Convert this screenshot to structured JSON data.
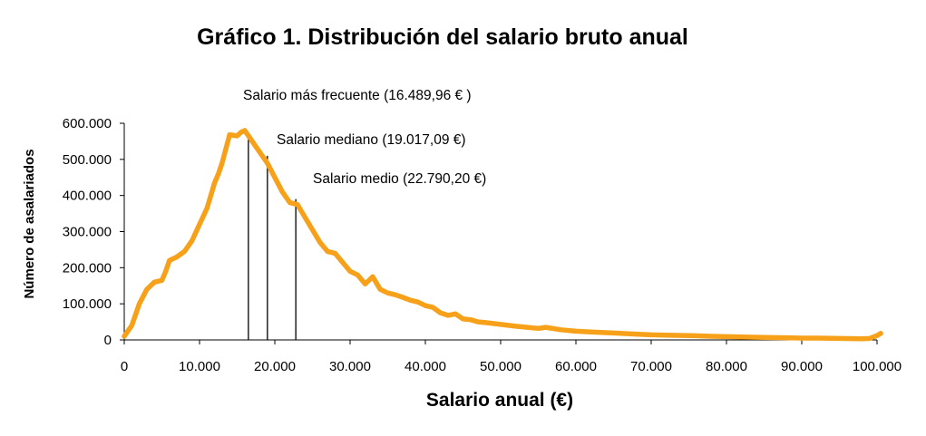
{
  "chart_data": {
    "type": "line",
    "title": "Gráfico 1. Distribución del salario bruto anual",
    "xlabel": "Salario anual (€)",
    "ylabel": "Número de asalariados",
    "xlim": [
      0,
      100000
    ],
    "ylim": [
      0,
      600000
    ],
    "x_ticks": [
      "0",
      "10.000",
      "20.000",
      "30.000",
      "40.000",
      "50.000",
      "60.000",
      "70.000",
      "80.000",
      "90.000",
      "100.000"
    ],
    "y_ticks": [
      "0",
      "100.000",
      "200.000",
      "300.000",
      "400.000",
      "500.000",
      "600.000"
    ],
    "grid": false,
    "line_color": "#F7A11A",
    "series": [
      {
        "x": [
          0,
          1000,
          2000,
          3000,
          4000,
          5000,
          5500,
          6000,
          7000,
          8000,
          9000,
          10000,
          11000,
          12000,
          12500,
          13000,
          13500,
          14000,
          15000,
          15500,
          16000,
          16500,
          17000,
          18000,
          19000,
          20000,
          21000,
          22000,
          23000,
          24000,
          25000,
          26000,
          27000,
          28000,
          29000,
          30000,
          31000,
          32000,
          33000,
          34000,
          35000,
          36000,
          37000,
          38000,
          39000,
          40000,
          41000,
          42000,
          43000,
          44000,
          45000,
          46000,
          47000,
          48000,
          50000,
          52000,
          55000,
          56000,
          58000,
          60000,
          62000,
          65000,
          68000,
          70000,
          72000,
          75000,
          78000,
          80000,
          82000,
          85000,
          88000,
          90000,
          92000,
          95000,
          98000,
          99000,
          100000,
          100500
        ],
        "values": [
          10000,
          40000,
          100000,
          140000,
          160000,
          165000,
          190000,
          220000,
          230000,
          245000,
          275000,
          320000,
          365000,
          435000,
          460000,
          490000,
          530000,
          568000,
          565000,
          575000,
          580000,
          565000,
          550000,
          520000,
          490000,
          450000,
          410000,
          380000,
          375000,
          340000,
          305000,
          270000,
          245000,
          240000,
          215000,
          190000,
          180000,
          155000,
          175000,
          140000,
          130000,
          125000,
          118000,
          110000,
          105000,
          95000,
          90000,
          75000,
          68000,
          72000,
          58000,
          56000,
          50000,
          48000,
          43000,
          38000,
          32000,
          35000,
          28000,
          24000,
          22000,
          19000,
          16000,
          14000,
          13000,
          12000,
          10000,
          9000,
          8000,
          7000,
          6000,
          5000,
          5000,
          4000,
          3000,
          4000,
          12000,
          18000
        ]
      }
    ],
    "reference_lines": [
      {
        "label": "Salario más frecuente (16.489,96 € )",
        "x": 16490,
        "y": 575000
      },
      {
        "label": "Salario mediano (19.017,09 €)",
        "x": 19017,
        "y": 510000
      },
      {
        "label": "Salario medio (22.790,20 €)",
        "x": 22790,
        "y": 390000
      }
    ]
  }
}
